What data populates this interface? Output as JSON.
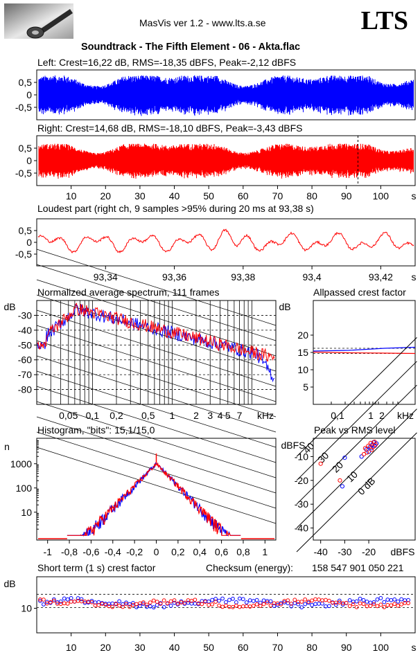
{
  "header": {
    "app_title": "MasVis ver 1.2 - www.lts.a.se",
    "brand": "LTS",
    "track_title": "Soundtrack - The Fifth Element - 06 - Akta.flac"
  },
  "panels": {
    "left_label": "Left: Crest=16,22 dB, RMS=-18,35 dBFS, Peak=-2,12 dBFS",
    "right_label": "Right: Crest=14,68 dB, RMS=-18,10 dBFS, Peak=-3,43 dBFS",
    "loudest_label": "Loudest part (right ch, 9 samples >95% during 20 ms at 93,38 s)",
    "spectrum_label": "Normalized average spectrum, 111 frames",
    "allpassed_label": "Allpassed crest factor",
    "histogram_label": "Histogram, \"bits\": 15,1/15,0",
    "peak_rms_label": "Peak vs RMS level",
    "short_term_label": "Short term (1 s) crest factor",
    "checksum_label": "Checksum (energy):",
    "checksum_value": "158 547 901 050 221"
  },
  "colors": {
    "left": "#0000ff",
    "right": "#ff0000",
    "grid": "#000000"
  },
  "chart_data": [
    {
      "type": "line",
      "title": "Left: Crest=16,22 dB, RMS=-18,35 dBFS, Peak=-2,12 dBFS",
      "y_ticks": [
        "0,5",
        "0",
        "-0,5"
      ],
      "ylim": [
        -1,
        1
      ],
      "xlim": [
        0,
        110
      ],
      "series": [
        {
          "color": "#0000ff",
          "envelope_peak": 0.78
        }
      ]
    },
    {
      "type": "line",
      "title": "Right: Crest=14,68 dB, RMS=-18,10 dBFS, Peak=-3,43 dBFS",
      "y_ticks": [
        "0,5",
        "0",
        "-0,5"
      ],
      "ylim": [
        -1,
        1
      ],
      "xlim": [
        0,
        110
      ],
      "x_ticks": [
        "10",
        "20",
        "30",
        "40",
        "50",
        "60",
        "70",
        "80",
        "90",
        "100",
        "s"
      ],
      "marker_x": 93.38,
      "series": [
        {
          "color": "#ff0000",
          "envelope_peak": 0.68
        }
      ]
    },
    {
      "type": "line",
      "title": "Loudest part (right ch, 9 samples >95% during 20 ms at 93,38 s)",
      "y_ticks": [
        "0,5",
        "0",
        "-0,5"
      ],
      "ylim": [
        -1,
        1
      ],
      "xlim": [
        93.32,
        93.43
      ],
      "x_ticks": [
        "93,34",
        "93,36",
        "93,38",
        "93,4",
        "93,42",
        "s"
      ],
      "series": [
        {
          "color": "#ff0000"
        }
      ]
    },
    {
      "type": "line",
      "title": "Normalized average spectrum, 111 frames",
      "ylabel": "dB",
      "xlabel": "kHz",
      "y_ticks": [
        "-30",
        "-40",
        "-50",
        "-60",
        "-70",
        "-80"
      ],
      "x_ticks": [
        "0,05",
        "0,1",
        "0,2",
        "0,5",
        "1",
        "2",
        "3",
        "4",
        "5",
        "7",
        "kHz"
      ],
      "ylim": [
        -90,
        -20
      ],
      "xlim": [
        0.02,
        20
      ],
      "x_scale": "log",
      "series": [
        {
          "color": "#0000ff"
        },
        {
          "color": "#ff0000"
        }
      ]
    },
    {
      "type": "line",
      "title": "Allpassed crest factor",
      "ylabel": "dB",
      "xlabel": "kHz",
      "y_ticks": [
        "20",
        "15",
        "10",
        "5"
      ],
      "x_ticks": [
        "0,1",
        "1",
        "2",
        "kHz"
      ],
      "ylim": [
        0,
        30
      ],
      "x_scale": "log",
      "series": [
        {
          "color": "#0000ff",
          "values": [
            15.4,
            15.6,
            16.2,
            16.5
          ]
        },
        {
          "color": "#ff0000",
          "values": [
            15.1,
            14.9,
            14.8,
            14.7
          ]
        }
      ],
      "reference_lines": [
        16.2,
        14.7
      ]
    },
    {
      "type": "line",
      "title": "Histogram, \"bits\": 15,1/15,0",
      "ylabel": "n",
      "y_ticks": [
        "1000",
        "100",
        "10"
      ],
      "y_scale": "log",
      "x_ticks": [
        "-1",
        "-0,8",
        "-0,6",
        "-0,4",
        "-0,2",
        "0",
        "0,2",
        "0,4",
        "0,6",
        "0,8",
        "1"
      ],
      "xlim": [
        -1.1,
        1.1
      ],
      "series": [
        {
          "color": "#0000ff"
        },
        {
          "color": "#ff0000"
        }
      ]
    },
    {
      "type": "scatter",
      "title": "Peak vs RMS level",
      "ylabel": "dBFS",
      "xlabel": "dBFS",
      "y_ticks": [
        "-10",
        "-20",
        "-30",
        "-40"
      ],
      "x_ticks": [
        "-40",
        "-30",
        "-20",
        "dBFS"
      ],
      "diagonal_labels": [
        "40",
        "30",
        "20",
        "10",
        "0 dB"
      ],
      "xlim": [
        -50,
        0
      ],
      "ylim": [
        -50,
        0
      ],
      "series": [
        {
          "color": "#0000ff",
          "points": [
            [
              -30,
              -10.5
            ],
            [
              -31,
              -22.5
            ],
            [
              -23,
              -10
            ],
            [
              -21,
              -7
            ],
            [
              -19.5,
              -6
            ],
            [
              -18.5,
              -5
            ],
            [
              -20,
              -8
            ],
            [
              -18,
              -4
            ],
            [
              -19,
              -6.5
            ],
            [
              -17.5,
              -5.5
            ],
            [
              -16.8,
              -4.5
            ]
          ]
        },
        {
          "color": "#ff0000",
          "points": [
            [
              -40,
              -13
            ],
            [
              -32,
              -20
            ],
            [
              -22,
              -9
            ],
            [
              -21.5,
              -6.5
            ],
            [
              -20.2,
              -5.5
            ],
            [
              -19.2,
              -4.3
            ],
            [
              -18.2,
              -6
            ],
            [
              -17.6,
              -3.8
            ],
            [
              -20.8,
              -8.3
            ],
            [
              -18.8,
              -7.2
            ],
            [
              -17.2,
              -5
            ]
          ]
        }
      ]
    },
    {
      "type": "scatter",
      "title": "Short term (1 s) crest factor",
      "ylabel": "dB",
      "y_ticks": [
        "10"
      ],
      "x_ticks": [
        "10",
        "20",
        "30",
        "40",
        "50",
        "60",
        "70",
        "80",
        "90",
        "100",
        "s"
      ],
      "xlim": [
        0,
        110
      ],
      "ylim": [
        0,
        20
      ],
      "reference_lines": [
        10,
        15
      ],
      "series": [
        {
          "color": "#0000ff"
        },
        {
          "color": "#ff0000"
        }
      ]
    }
  ]
}
